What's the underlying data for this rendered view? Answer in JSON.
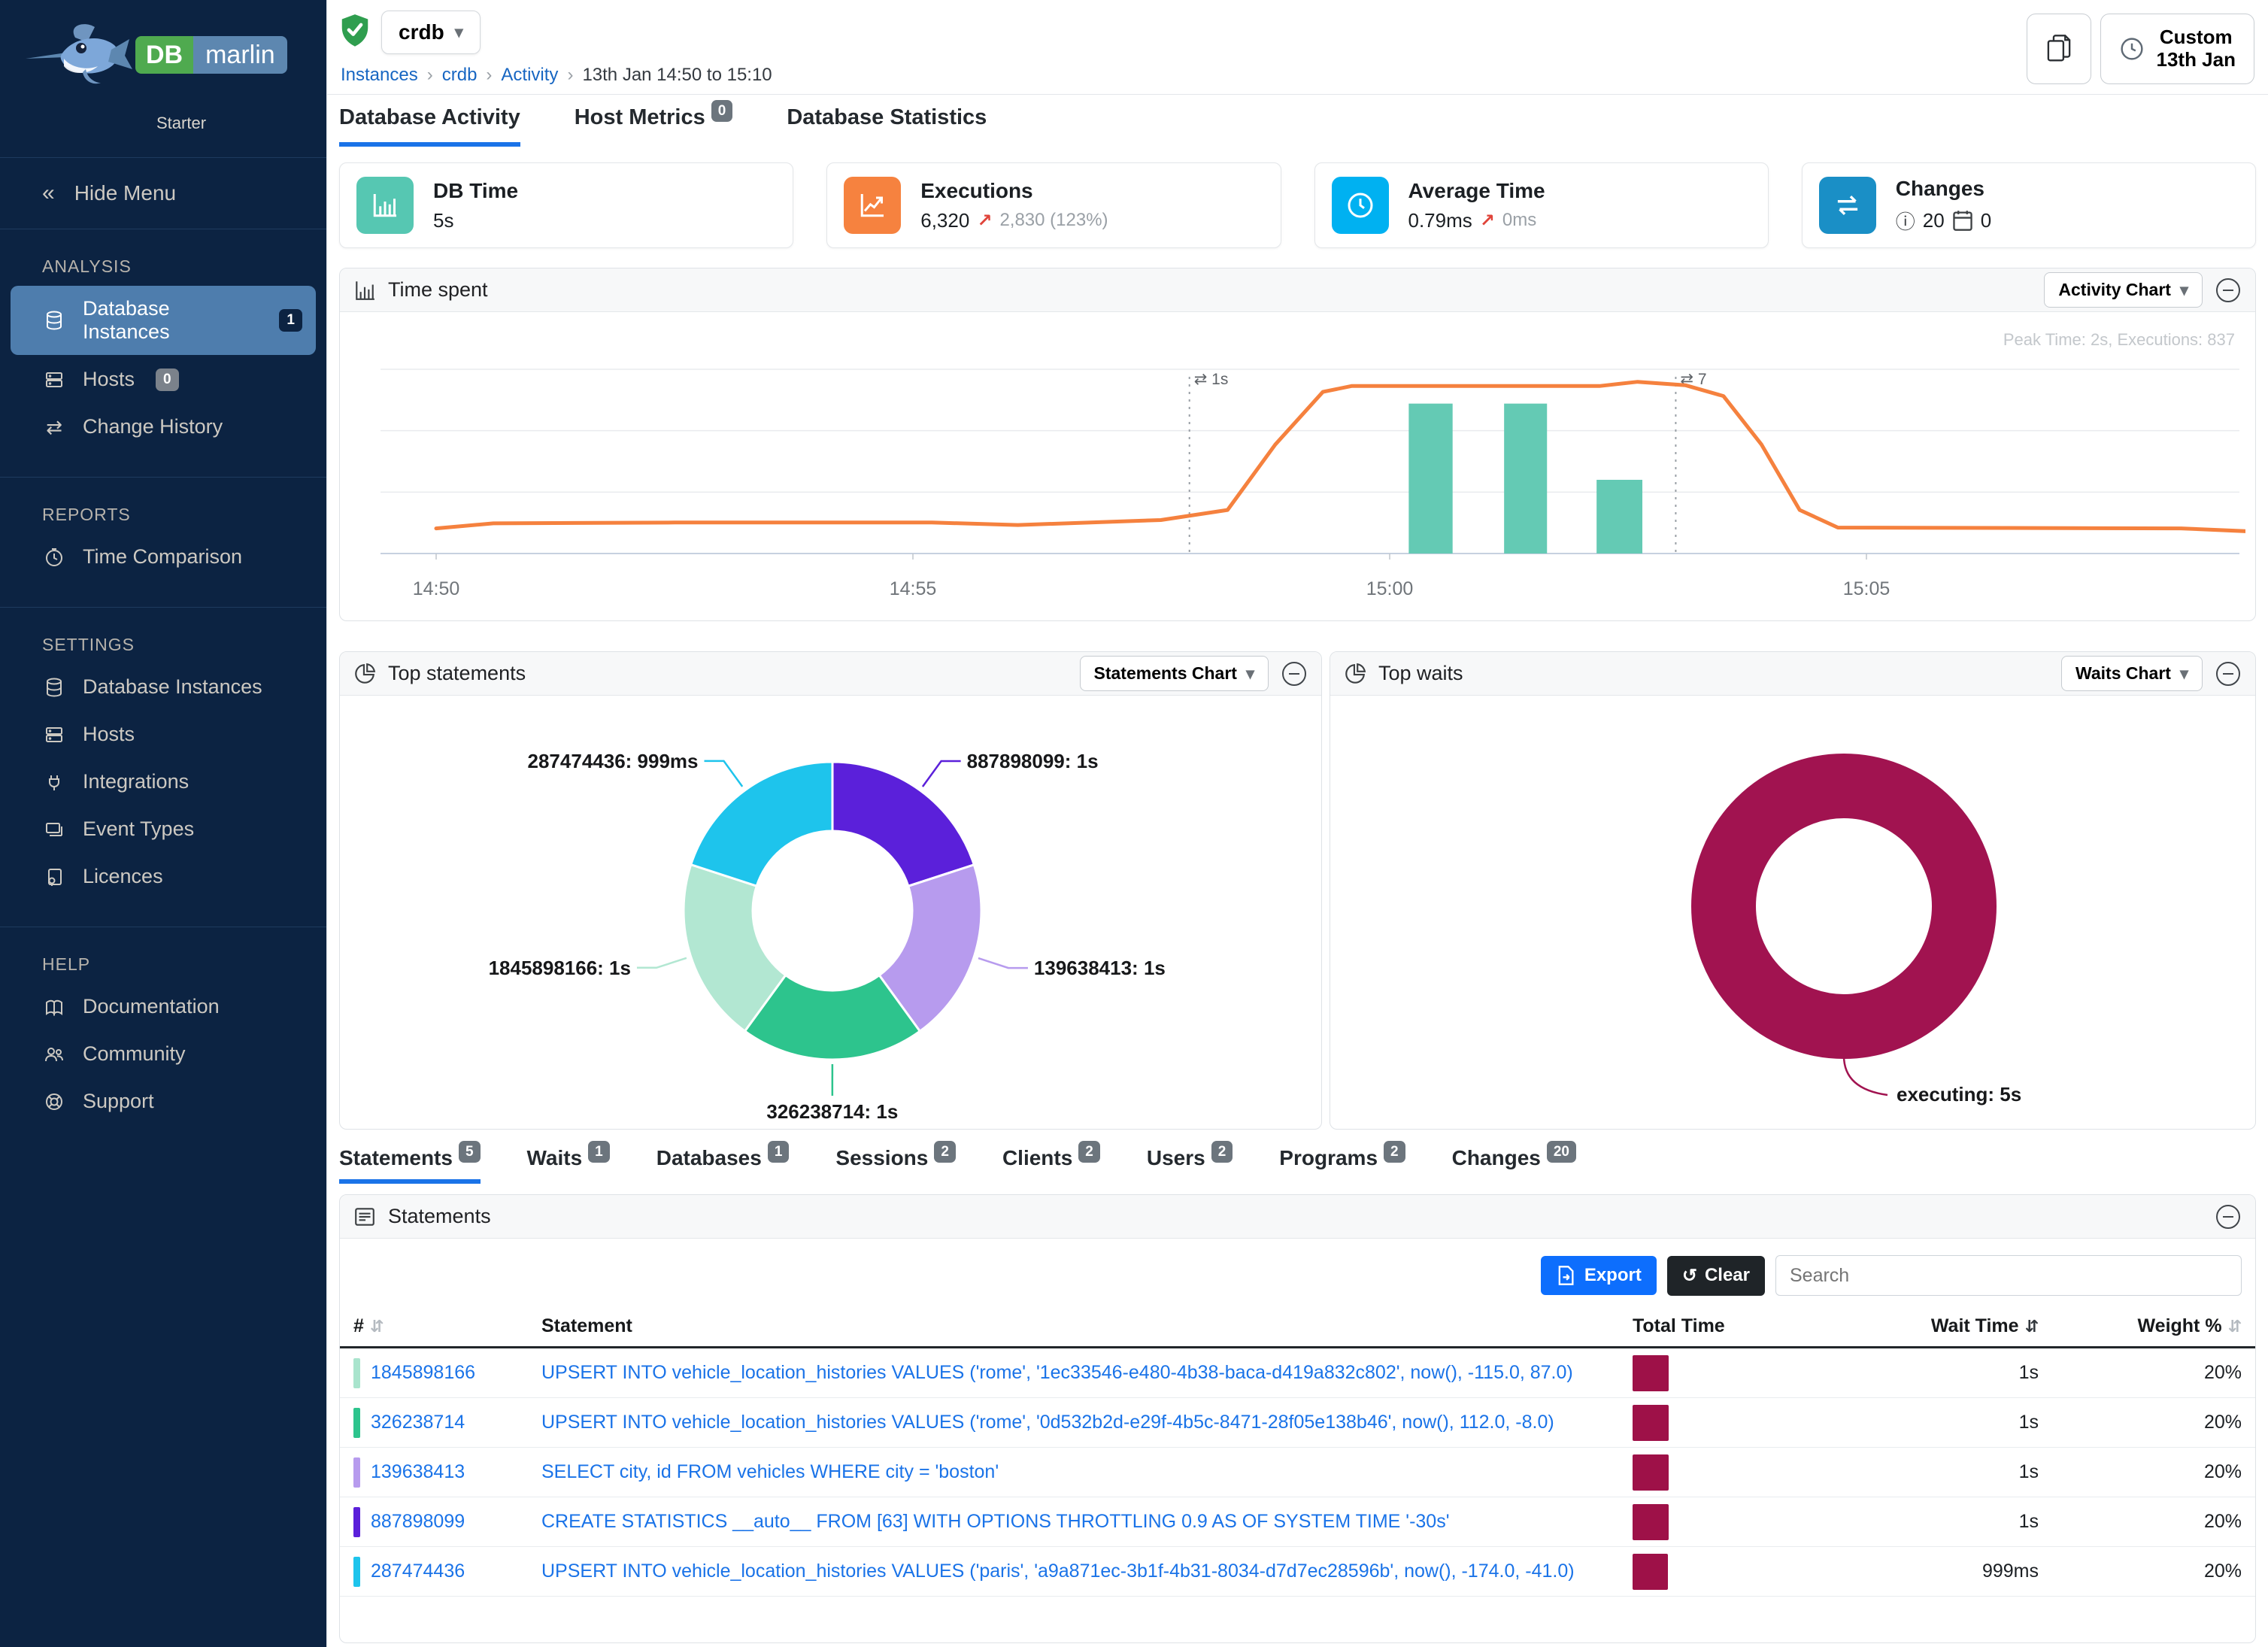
{
  "brand": {
    "db": "DB",
    "marlin": "marlin",
    "tier": "Starter"
  },
  "topbar": {
    "instance": "crdb",
    "breadcrumb": {
      "items": [
        "Instances",
        "crdb",
        "Activity"
      ],
      "current": "13th Jan 14:50 to 15:10"
    },
    "time_button": {
      "line1": "Custom",
      "line2": "13th Jan"
    }
  },
  "sidebar": {
    "hide_menu": "Hide Menu",
    "sections": [
      {
        "title": "ANALYSIS",
        "items": [
          {
            "label": "Database Instances",
            "badge": "1"
          },
          {
            "label": "Hosts",
            "badge": "0"
          },
          {
            "label": "Change History"
          }
        ]
      },
      {
        "title": "REPORTS",
        "items": [
          {
            "label": "Time Comparison"
          }
        ]
      },
      {
        "title": "SETTINGS",
        "items": [
          {
            "label": "Database Instances"
          },
          {
            "label": "Hosts"
          },
          {
            "label": "Integrations"
          },
          {
            "label": "Event Types"
          },
          {
            "label": "Licences"
          }
        ]
      },
      {
        "title": "HELP",
        "items": [
          {
            "label": "Documentation"
          },
          {
            "label": "Community"
          },
          {
            "label": "Support"
          }
        ]
      }
    ]
  },
  "tabs_main": [
    {
      "label": "Database Activity"
    },
    {
      "label": "Host Metrics",
      "badge": "0"
    },
    {
      "label": "Database Statistics"
    }
  ],
  "kpis": [
    {
      "title": "DB Time",
      "value": "5s",
      "color": "#56c7b2"
    },
    {
      "title": "Executions",
      "value": "6,320",
      "arrow": "↗",
      "delta": "2,830 (123%)",
      "color": "#f6823f"
    },
    {
      "title": "Average Time",
      "value": "0.79ms",
      "arrow": "↗",
      "delta": "0ms",
      "color": "#00b1f1"
    },
    {
      "title": "Changes",
      "info_count": "20",
      "calendar_count": "0",
      "color": "#1a8fc6"
    }
  ],
  "panels": {
    "time_spent": {
      "title": "Time spent",
      "button": "Activity Chart"
    },
    "top_statements": {
      "title": "Top statements",
      "button": "Statements Chart"
    },
    "top_waits": {
      "title": "Top waits",
      "button": "Waits Chart"
    },
    "statements_table": {
      "title": "Statements"
    }
  },
  "chart_data": {
    "activity": {
      "type": "line+bar",
      "title": "Time spent",
      "peak_note": "Peak Time: 2s, Executions: 837",
      "y_max": 2.2,
      "y_unit": "s",
      "grid_lines": 4,
      "x_ticks": [
        {
          "label": "14:50",
          "min": 0
        },
        {
          "label": "14:55",
          "min": 5
        },
        {
          "label": "15:00",
          "min": 10
        },
        {
          "label": "15:05",
          "min": 15
        }
      ],
      "x_end_min": 19.1,
      "line": {
        "name": "DB Time",
        "color": "#f5813e",
        "points": [
          [
            0,
            0.3
          ],
          [
            0.6,
            0.36
          ],
          [
            2.5,
            0.37
          ],
          [
            5.2,
            0.37
          ],
          [
            6.1,
            0.34
          ],
          [
            7.6,
            0.4
          ],
          [
            8.3,
            0.52
          ],
          [
            8.8,
            1.3
          ],
          [
            9.3,
            1.93
          ],
          [
            9.6,
            2.0
          ],
          [
            12.2,
            2.0
          ],
          [
            12.6,
            2.05
          ],
          [
            13.1,
            2.01
          ],
          [
            13.5,
            1.88
          ],
          [
            13.9,
            1.3
          ],
          [
            14.3,
            0.52
          ],
          [
            14.7,
            0.31
          ],
          [
            18.3,
            0.3
          ],
          [
            19.1,
            0.26
          ]
        ]
      },
      "bars": {
        "name": "Executions",
        "color": "#64cab4",
        "items": [
          {
            "from": 10.2,
            "to": 10.66,
            "value": 1.79
          },
          {
            "from": 11.2,
            "to": 11.65,
            "value": 1.79
          },
          {
            "from": 12.17,
            "to": 12.65,
            "value": 0.88
          }
        ]
      },
      "change_markers": [
        {
          "min": 7.9,
          "label": "1s"
        },
        {
          "min": 13.0,
          "label": "7"
        }
      ]
    },
    "top_statements": {
      "type": "donut",
      "slices": [
        {
          "label": "887898099",
          "value": 1.0,
          "value_label": "1s",
          "color": "#5b20da"
        },
        {
          "label": "139638413",
          "value": 1.0,
          "value_label": "1s",
          "color": "#b79bee"
        },
        {
          "label": "326238714",
          "value": 1.0,
          "value_label": "1s",
          "color": "#2dc48d"
        },
        {
          "label": "1845898166",
          "value": 1.0,
          "value_label": "1s",
          "color": "#b2e7d2"
        },
        {
          "label": "287474436",
          "value": 0.999,
          "value_label": "999ms",
          "color": "#1ec4ec"
        }
      ]
    },
    "top_waits": {
      "type": "donut",
      "slices": [
        {
          "label": "executing",
          "value": 5,
          "value_label": "5s",
          "color": "#a11350"
        }
      ]
    }
  },
  "bottom_tabs": [
    {
      "label": "Statements",
      "badge": "5"
    },
    {
      "label": "Waits",
      "badge": "1"
    },
    {
      "label": "Databases",
      "badge": "1"
    },
    {
      "label": "Sessions",
      "badge": "2"
    },
    {
      "label": "Clients",
      "badge": "2"
    },
    {
      "label": "Users",
      "badge": "2"
    },
    {
      "label": "Programs",
      "badge": "2"
    },
    {
      "label": "Changes",
      "badge": "20"
    }
  ],
  "table": {
    "export_label": "Export",
    "clear_label": "Clear",
    "search_placeholder": "Search",
    "columns": {
      "num": "#",
      "statement": "Statement",
      "total_time": "Total Time",
      "wait_time": "Wait Time",
      "weight": "Weight %"
    },
    "bar_color": "#9e1148",
    "rows": [
      {
        "id": "1845898166",
        "chip_color": "#a9e4cd",
        "statement": "UPSERT INTO vehicle_location_histories VALUES ('rome', '1ec33546-e480-4b38-baca-d419a832c802', now(), -115.0, 87.0)",
        "wait_time": "1s",
        "weight": "20%"
      },
      {
        "id": "326238714",
        "chip_color": "#2dc48d",
        "statement": "UPSERT INTO vehicle_location_histories VALUES ('rome', '0d532b2d-e29f-4b5c-8471-28f05e138b46', now(), 112.0, -8.0)",
        "wait_time": "1s",
        "weight": "20%"
      },
      {
        "id": "139638413",
        "chip_color": "#b79bee",
        "statement": "SELECT city, id FROM vehicles WHERE city = 'boston'",
        "wait_time": "1s",
        "weight": "20%"
      },
      {
        "id": "887898099",
        "chip_color": "#5b20da",
        "statement": "CREATE STATISTICS __auto__ FROM [63] WITH OPTIONS THROTTLING 0.9 AS OF SYSTEM TIME '-30s'",
        "wait_time": "1s",
        "weight": "20%"
      },
      {
        "id": "287474436",
        "chip_color": "#1ec4ec",
        "statement": "UPSERT INTO vehicle_location_histories VALUES ('paris', 'a9a871ec-3b1f-4b31-8034-d7d7ec28596b', now(), -174.0, -41.0)",
        "wait_time": "999ms",
        "weight": "20%"
      }
    ]
  }
}
